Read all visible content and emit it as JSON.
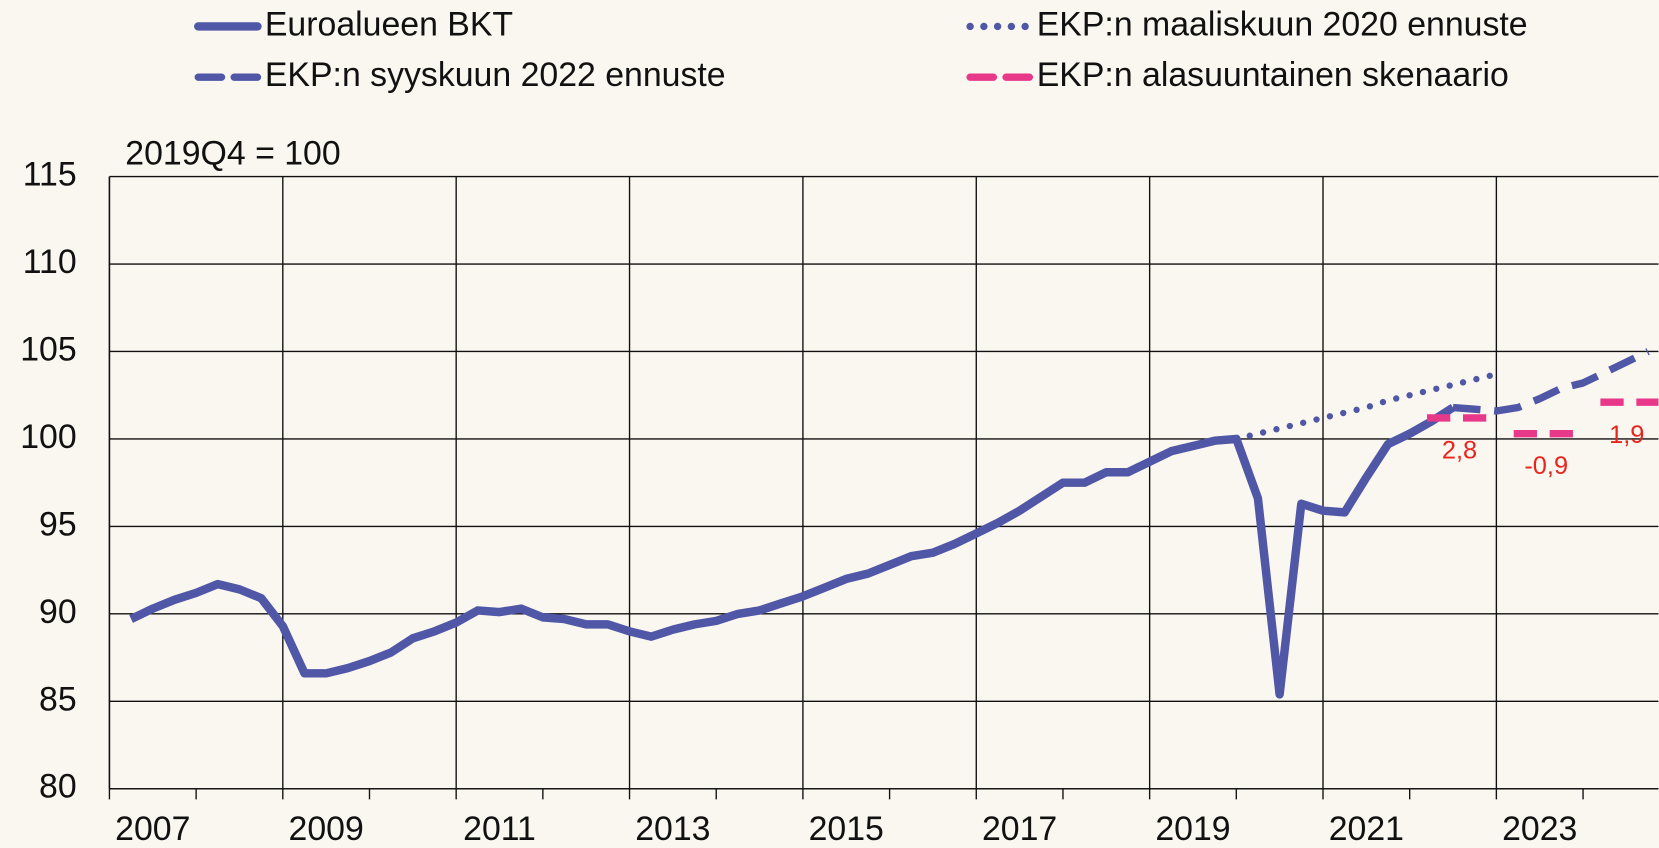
{
  "chart_data": {
    "type": "line",
    "y_label": "2019Q4 = 100",
    "xlim": [
      2007,
      2024.87
    ],
    "ylim": [
      80,
      115
    ],
    "yticks": [
      80,
      85,
      90,
      95,
      100,
      105,
      110,
      115
    ],
    "xticks": [
      {
        "value": 2007.5,
        "label": "2007"
      },
      {
        "value": 2009.5,
        "label": "2009"
      },
      {
        "value": 2011.5,
        "label": "2011"
      },
      {
        "value": 2013.5,
        "label": "2013"
      },
      {
        "value": 2015.5,
        "label": "2015"
      },
      {
        "value": 2017.5,
        "label": "2017"
      },
      {
        "value": 2019.5,
        "label": "2019"
      },
      {
        "value": 2021.5,
        "label": "2021"
      },
      {
        "value": 2023.5,
        "label": "2023"
      }
    ],
    "xgrid": [
      2007,
      2009,
      2011,
      2013,
      2015,
      2017,
      2019,
      2021,
      2023
    ],
    "xminor": [
      2008,
      2010,
      2012,
      2014,
      2016,
      2018,
      2020,
      2022,
      2024
    ],
    "grid": true,
    "series": [
      {
        "name": "Euroalueen BKT",
        "color": "#4f57a6",
        "style": "solid",
        "x": [
          2007.25,
          2007.5,
          2007.75,
          2008,
          2008.25,
          2008.5,
          2008.75,
          2009,
          2009.25,
          2009.5,
          2009.75,
          2010,
          2010.25,
          2010.5,
          2010.75,
          2011,
          2011.25,
          2011.5,
          2011.75,
          2012,
          2012.25,
          2012.5,
          2012.75,
          2013,
          2013.25,
          2013.5,
          2013.75,
          2014,
          2014.25,
          2014.5,
          2014.75,
          2015,
          2015.25,
          2015.5,
          2015.75,
          2016,
          2016.25,
          2016.5,
          2016.75,
          2017,
          2017.25,
          2017.5,
          2017.75,
          2018,
          2018.25,
          2018.5,
          2018.75,
          2019,
          2019.25,
          2019.5,
          2019.75,
          2020,
          2020.25,
          2020.5,
          2020.75,
          2021,
          2021.25,
          2021.5,
          2021.75,
          2022,
          2022.25,
          2022.5
        ],
        "values": [
          89.7,
          90.3,
          90.8,
          91.2,
          91.7,
          91.4,
          90.9,
          89.3,
          86.6,
          86.6,
          86.9,
          87.3,
          87.8,
          88.6,
          89.0,
          89.5,
          90.2,
          90.1,
          90.3,
          89.8,
          89.7,
          89.4,
          89.4,
          89.0,
          88.7,
          89.1,
          89.4,
          89.6,
          90.0,
          90.2,
          90.6,
          91.0,
          91.5,
          92.0,
          92.3,
          92.8,
          93.3,
          93.5,
          94.0,
          94.6,
          95.2,
          95.9,
          96.7,
          97.5,
          97.5,
          98.1,
          98.1,
          98.7,
          99.3,
          99.6,
          99.9,
          100,
          96.6,
          85.4,
          96.3,
          95.9,
          95.8,
          97.8,
          99.7,
          100.3,
          101.0,
          101.8
        ]
      },
      {
        "name": "EKP:n maaliskuun 2020 ennuste",
        "color": "#4f57a6",
        "style": "dotted",
        "x": [
          2020,
          2020.25,
          2020.5,
          2020.75,
          2021,
          2021.25,
          2021.5,
          2021.75,
          2022,
          2022.25,
          2022.5,
          2022.75,
          2023
        ],
        "values": [
          100,
          100.3,
          100.6,
          100.9,
          101.2,
          101.5,
          101.8,
          102.2,
          102.5,
          102.8,
          103.1,
          103.4,
          103.7
        ]
      },
      {
        "name": "EKP:n syyskuun 2022 ennuste",
        "color": "#4f57a6",
        "style": "dashed",
        "x": [
          2022.5,
          2022.75,
          2023,
          2023.25,
          2023.5,
          2023.75,
          2024,
          2024.25,
          2024.5,
          2024.75
        ],
        "values": [
          101.8,
          101.7,
          101.6,
          101.8,
          102.3,
          102.9,
          103.2,
          103.8,
          104.4,
          105.0
        ]
      },
      {
        "name": "EKP:n alasuuntainen skenaario",
        "color": "#e8388a",
        "style": "segments",
        "x": [
          2022,
          2023,
          2024
        ],
        "values": [
          101.2,
          100.3,
          102.1
        ],
        "growth": [
          2.8,
          -0.9,
          1.9
        ],
        "growth_labels": [
          "2,8",
          "-0,9",
          "1,9"
        ],
        "label_color": "#e8241c"
      }
    ]
  }
}
